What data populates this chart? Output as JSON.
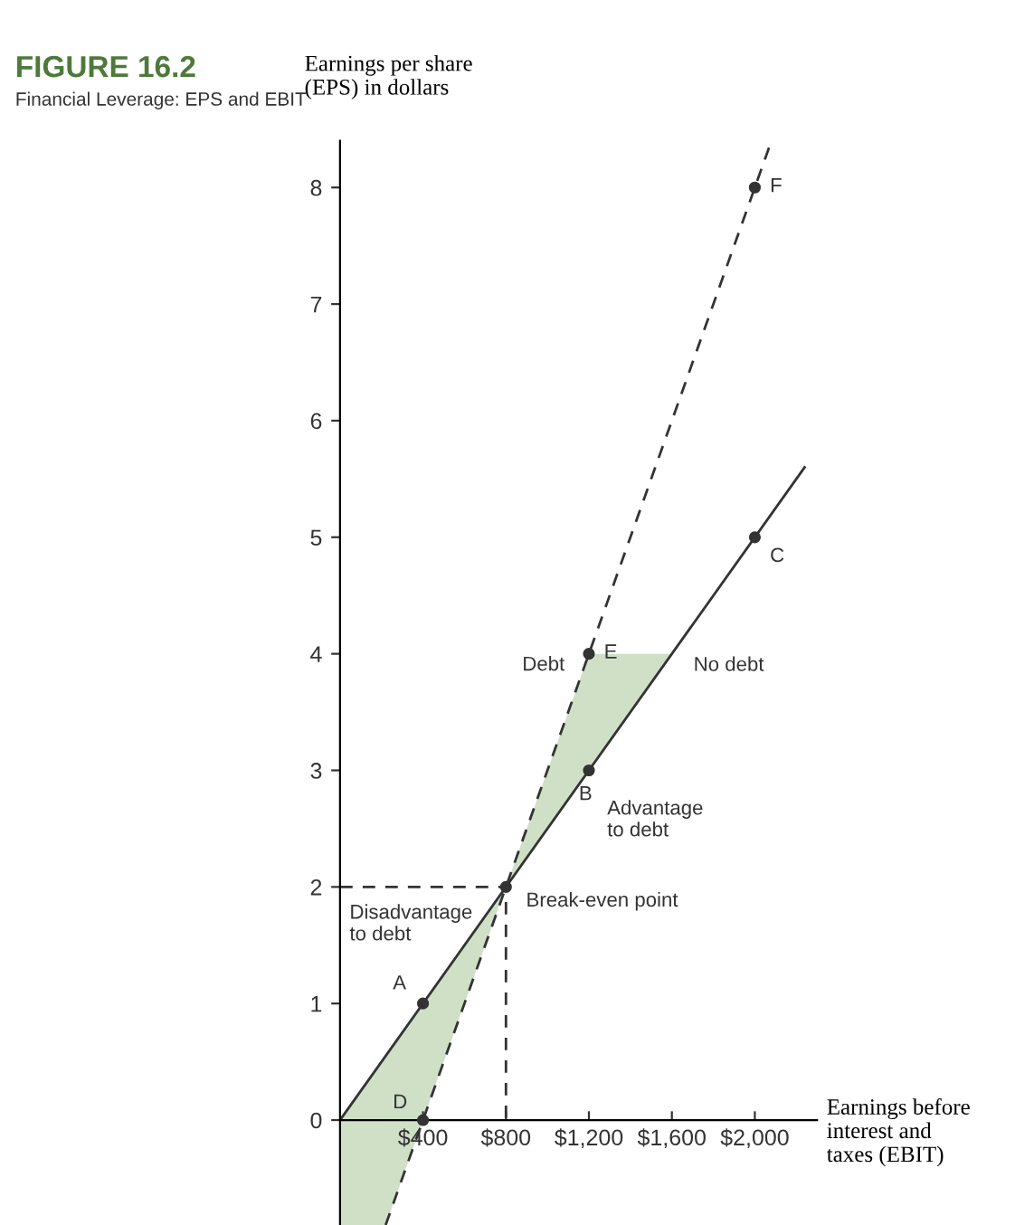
{
  "chart_data": {
    "type": "line",
    "title": "FIGURE 16.2",
    "subtitle": "Financial Leverage: EPS and EBIT",
    "ylabel": "Earnings per share\n(EPS) in dollars",
    "xlabel": "Earnings before\ninterest and\ntaxes (EBIT)",
    "xlim": [
      0,
      2300
    ],
    "ylim": [
      -0.9,
      8.4
    ],
    "xticks": [
      {
        "value": 400,
        "label": "$400"
      },
      {
        "value": 800,
        "label": "$800"
      },
      {
        "value": 1200,
        "label": "$1,200"
      },
      {
        "value": 1600,
        "label": "$1,600"
      },
      {
        "value": 2000,
        "label": "$2,000"
      }
    ],
    "yticks": [
      0,
      1,
      2,
      3,
      4,
      5,
      6,
      7,
      8
    ],
    "series": [
      {
        "type": "area",
        "name": "Disadvantage\nto debt",
        "color": "#cfe0c6",
        "x": [
          0,
          800,
          220,
          0
        ],
        "values": [
          0,
          2,
          -0.9,
          -0.9
        ]
      },
      {
        "type": "area",
        "name": "Advantage\nto debt",
        "color": "#cfe0c6",
        "x": [
          800,
          1200,
          1600
        ],
        "values": [
          2,
          4,
          4
        ]
      },
      {
        "color": "#333333",
        "line_style": "dashed",
        "x": [
          0,
          800,
          800
        ],
        "values": [
          2,
          2,
          0
        ]
      },
      {
        "name": "No debt",
        "color": "#333333",
        "line_style": "solid",
        "x": [
          0,
          2240
        ],
        "values": [
          0,
          5.6
        ]
      },
      {
        "name": "Debt",
        "color": "#333333",
        "line_style": "dashed",
        "x": [
          220,
          2070
        ],
        "values": [
          -0.9,
          8.35
        ]
      },
      {
        "type": "scatter",
        "color": "#333333",
        "marker": "circle",
        "x": [
          400,
          800,
          1200,
          2000,
          400,
          1200,
          2000
        ],
        "values": [
          1,
          2,
          3,
          5,
          0,
          4,
          8
        ],
        "value_labels": [
          "A",
          "Break-even point",
          "B",
          "C",
          "D",
          "E",
          "F"
        ]
      }
    ]
  }
}
